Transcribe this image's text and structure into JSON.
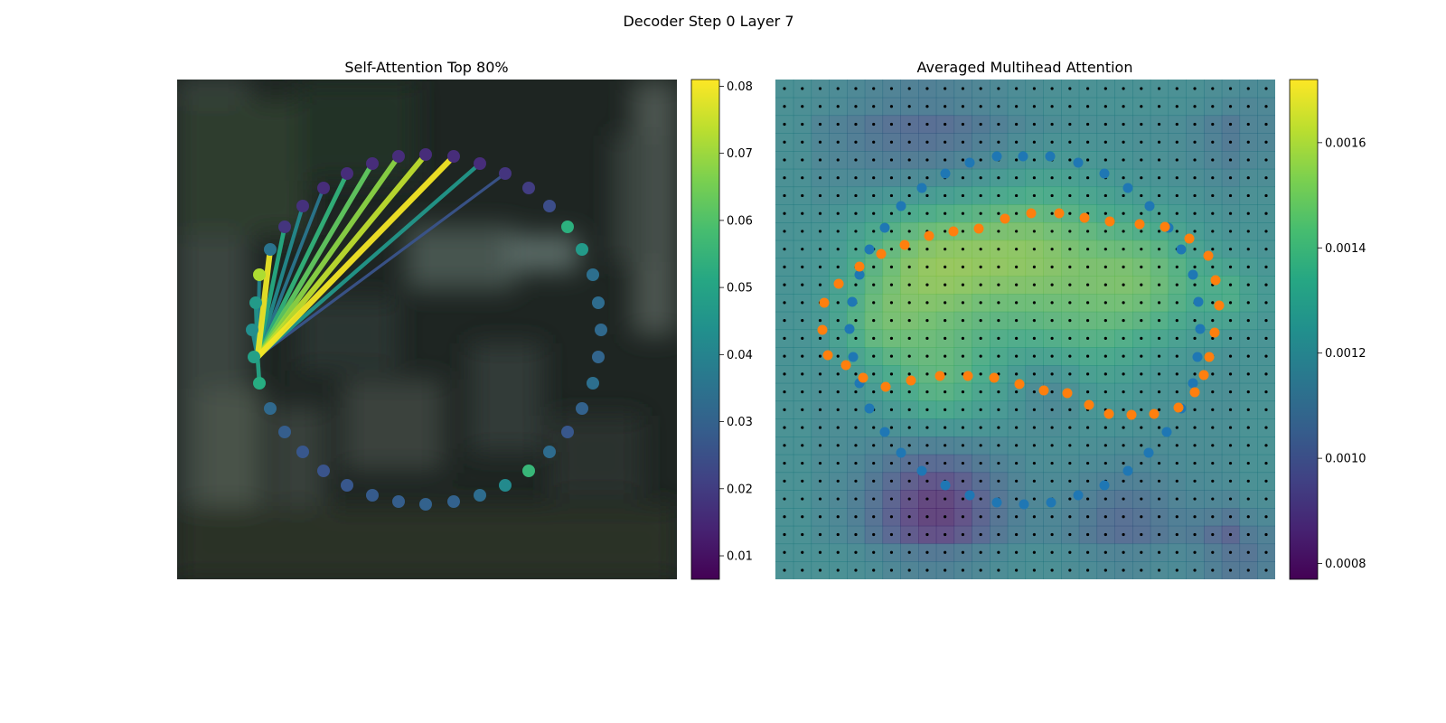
{
  "figure": {
    "suptitle": "Decoder Step 0 Layer 7"
  },
  "chart_data": [
    {
      "type": "scatter",
      "panel": "self-attention",
      "title": "Self-Attention Top 80%",
      "background": "blurred dark photograph of foliage",
      "colormap": "viridis",
      "colorbar": {
        "range": [
          0.0065,
          0.081
        ],
        "ticks": [
          0.01,
          0.02,
          0.03,
          0.04,
          0.05,
          0.06,
          0.07,
          0.08
        ],
        "tick_labels": [
          "0.01",
          "0.02",
          "0.03",
          "0.04",
          "0.05",
          "0.06",
          "0.07",
          "0.08"
        ]
      },
      "ring_points": [
        {
          "x": 283,
          "y": 335,
          "v": 0.047
        },
        {
          "x": 287,
          "y": 304,
          "v": 0.072
        },
        {
          "x": 299,
          "y": 276,
          "v": 0.035
        },
        {
          "x": 315,
          "y": 251,
          "v": 0.018
        },
        {
          "x": 335,
          "y": 228,
          "v": 0.017
        },
        {
          "x": 358,
          "y": 208,
          "v": 0.016
        },
        {
          "x": 384,
          "y": 192,
          "v": 0.016
        },
        {
          "x": 412,
          "y": 181,
          "v": 0.016
        },
        {
          "x": 441,
          "y": 173,
          "v": 0.016
        },
        {
          "x": 471,
          "y": 171,
          "v": 0.016
        },
        {
          "x": 502,
          "y": 173,
          "v": 0.016
        },
        {
          "x": 531,
          "y": 181,
          "v": 0.016
        },
        {
          "x": 559,
          "y": 192,
          "v": 0.018
        },
        {
          "x": 585,
          "y": 208,
          "v": 0.02
        },
        {
          "x": 608,
          "y": 228,
          "v": 0.024
        },
        {
          "x": 628,
          "y": 251,
          "v": 0.054
        },
        {
          "x": 644,
          "y": 276,
          "v": 0.047
        },
        {
          "x": 656,
          "y": 304,
          "v": 0.034
        },
        {
          "x": 662,
          "y": 335,
          "v": 0.033
        },
        {
          "x": 665,
          "y": 365,
          "v": 0.032
        },
        {
          "x": 662,
          "y": 395,
          "v": 0.031
        },
        {
          "x": 656,
          "y": 424,
          "v": 0.034
        },
        {
          "x": 644,
          "y": 452,
          "v": 0.03
        },
        {
          "x": 628,
          "y": 478,
          "v": 0.027
        },
        {
          "x": 608,
          "y": 500,
          "v": 0.033
        },
        {
          "x": 585,
          "y": 521,
          "v": 0.056
        },
        {
          "x": 559,
          "y": 537,
          "v": 0.042
        },
        {
          "x": 531,
          "y": 548,
          "v": 0.033
        },
        {
          "x": 502,
          "y": 555,
          "v": 0.03
        },
        {
          "x": 471,
          "y": 558,
          "v": 0.03
        },
        {
          "x": 441,
          "y": 555,
          "v": 0.029
        },
        {
          "x": 412,
          "y": 548,
          "v": 0.028
        },
        {
          "x": 384,
          "y": 537,
          "v": 0.027
        },
        {
          "x": 358,
          "y": 521,
          "v": 0.026
        },
        {
          "x": 335,
          "y": 500,
          "v": 0.027
        },
        {
          "x": 315,
          "y": 478,
          "v": 0.029
        },
        {
          "x": 299,
          "y": 452,
          "v": 0.032
        },
        {
          "x": 287,
          "y": 424,
          "v": 0.053
        },
        {
          "x": 281,
          "y": 395,
          "v": 0.049
        },
        {
          "x": 279,
          "y": 365,
          "v": 0.043
        }
      ],
      "source_point": {
        "x": 285,
        "y": 395
      },
      "attention_lines": [
        {
          "to": [
            287,
            424
          ],
          "w": 0.05
        },
        {
          "to": [
            283,
            335
          ],
          "w": 0.045
        },
        {
          "to": [
            279,
            365
          ],
          "w": 0.043
        },
        {
          "to": [
            287,
            304
          ],
          "w": 0.04
        },
        {
          "to": [
            299,
            276
          ],
          "w": 0.079
        },
        {
          "to": [
            315,
            251
          ],
          "w": 0.052
        },
        {
          "to": [
            335,
            228
          ],
          "w": 0.042
        },
        {
          "to": [
            358,
            208
          ],
          "w": 0.036
        },
        {
          "to": [
            384,
            192
          ],
          "w": 0.055
        },
        {
          "to": [
            412,
            181
          ],
          "w": 0.063
        },
        {
          "to": [
            441,
            173
          ],
          "w": 0.068
        },
        {
          "to": [
            471,
            171
          ],
          "w": 0.074
        },
        {
          "to": [
            502,
            173
          ],
          "w": 0.08
        },
        {
          "to": [
            531,
            181
          ],
          "w": 0.046
        },
        {
          "to": [
            559,
            192
          ],
          "w": 0.026
        }
      ]
    },
    {
      "type": "heatmap",
      "panel": "averaged-multihead",
      "title": "Averaged Multihead Attention",
      "colormap": "viridis",
      "grid": {
        "rows": 28,
        "cols": 28
      },
      "colorbar": {
        "range": [
          0.00077,
          0.00172
        ],
        "ticks": [
          0.0008,
          0.001,
          0.0012,
          0.0014,
          0.0016
        ],
        "tick_labels": [
          "0.0008",
          "0.0010",
          "0.0012",
          "0.0014",
          "0.0016"
        ]
      },
      "ref_points_series": {
        "name": "",
        "color": "#1f77b4",
        "points": [
          [
            1132,
            173
          ],
          [
            1162,
            173
          ],
          [
            1193,
            180
          ],
          [
            1222,
            192
          ],
          [
            1248,
            208
          ],
          [
            1272,
            228
          ],
          [
            1293,
            252
          ],
          [
            1307,
            276
          ],
          [
            1320,
            304
          ],
          [
            1326,
            334
          ],
          [
            1328,
            364
          ],
          [
            1325,
            395
          ],
          [
            1320,
            424
          ],
          [
            1307,
            452
          ],
          [
            1291,
            478
          ],
          [
            1271,
            501
          ],
          [
            1248,
            521
          ],
          [
            1222,
            537
          ],
          [
            1193,
            548
          ],
          [
            1163,
            556
          ],
          [
            1133,
            558
          ],
          [
            1103,
            556
          ],
          [
            1073,
            548
          ],
          [
            1046,
            537
          ],
          [
            1020,
            521
          ],
          [
            997,
            501
          ],
          [
            979,
            478
          ],
          [
            962,
            452
          ],
          [
            951,
            424
          ],
          [
            944,
            395
          ],
          [
            940,
            364
          ],
          [
            943,
            334
          ],
          [
            951,
            304
          ],
          [
            962,
            276
          ],
          [
            979,
            252
          ],
          [
            997,
            228
          ],
          [
            1020,
            208
          ],
          [
            1046,
            192
          ],
          [
            1073,
            180
          ],
          [
            1103,
            173
          ]
        ]
      },
      "pred_points_series": {
        "name": "",
        "color": "#ff7f0e",
        "points": [
          [
            912,
            335
          ],
          [
            910,
            365
          ],
          [
            916,
            393
          ],
          [
            936,
            404
          ],
          [
            955,
            418
          ],
          [
            980,
            428
          ],
          [
            1008,
            421
          ],
          [
            1040,
            416
          ],
          [
            1071,
            416
          ],
          [
            1100,
            418
          ],
          [
            1128,
            425
          ],
          [
            1155,
            432
          ],
          [
            1181,
            435
          ],
          [
            1205,
            448
          ],
          [
            1227,
            458
          ],
          [
            1252,
            459
          ],
          [
            1277,
            458
          ],
          [
            1304,
            451
          ],
          [
            1322,
            434
          ],
          [
            1332,
            415
          ],
          [
            1338,
            395
          ],
          [
            1344,
            368
          ],
          [
            1349,
            338
          ],
          [
            1345,
            310
          ],
          [
            1337,
            283
          ],
          [
            1316,
            264
          ],
          [
            1289,
            251
          ],
          [
            1261,
            248
          ],
          [
            1228,
            245
          ],
          [
            1200,
            241
          ],
          [
            1172,
            236
          ],
          [
            1141,
            236
          ],
          [
            1112,
            242
          ],
          [
            1083,
            253
          ],
          [
            1055,
            256
          ],
          [
            1028,
            261
          ],
          [
            1001,
            271
          ],
          [
            975,
            281
          ],
          [
            951,
            295
          ],
          [
            928,
            314
          ]
        ]
      },
      "heat_hotspots": [
        {
          "cx": 0.3,
          "cy": 0.37,
          "s": 0.11,
          "a": 1.0
        },
        {
          "cx": 0.52,
          "cy": 0.34,
          "s": 0.11,
          "a": 0.85
        },
        {
          "cx": 0.74,
          "cy": 0.4,
          "s": 0.09,
          "a": 0.75
        },
        {
          "cx": 0.92,
          "cy": 0.43,
          "s": 0.05,
          "a": 0.45
        },
        {
          "cx": 0.33,
          "cy": 0.61,
          "s": 0.08,
          "a": 0.6
        },
        {
          "cx": 0.6,
          "cy": 0.54,
          "s": 0.1,
          "a": 0.35
        },
        {
          "cx": 0.2,
          "cy": 0.5,
          "s": 0.06,
          "a": 0.4
        }
      ],
      "heat_coldspots": [
        {
          "cx": 0.32,
          "cy": 0.86,
          "s": 0.09,
          "a": 1.1
        },
        {
          "cx": 0.3,
          "cy": 0.09,
          "s": 0.13,
          "a": 0.55
        },
        {
          "cx": 0.93,
          "cy": 0.95,
          "s": 0.06,
          "a": 0.8
        },
        {
          "cx": 0.7,
          "cy": 0.9,
          "s": 0.08,
          "a": 0.5
        },
        {
          "cx": 0.95,
          "cy": 0.1,
          "s": 0.07,
          "a": 0.4
        },
        {
          "cx": 0.55,
          "cy": 0.62,
          "s": 0.05,
          "a": 0.35
        }
      ]
    }
  ]
}
